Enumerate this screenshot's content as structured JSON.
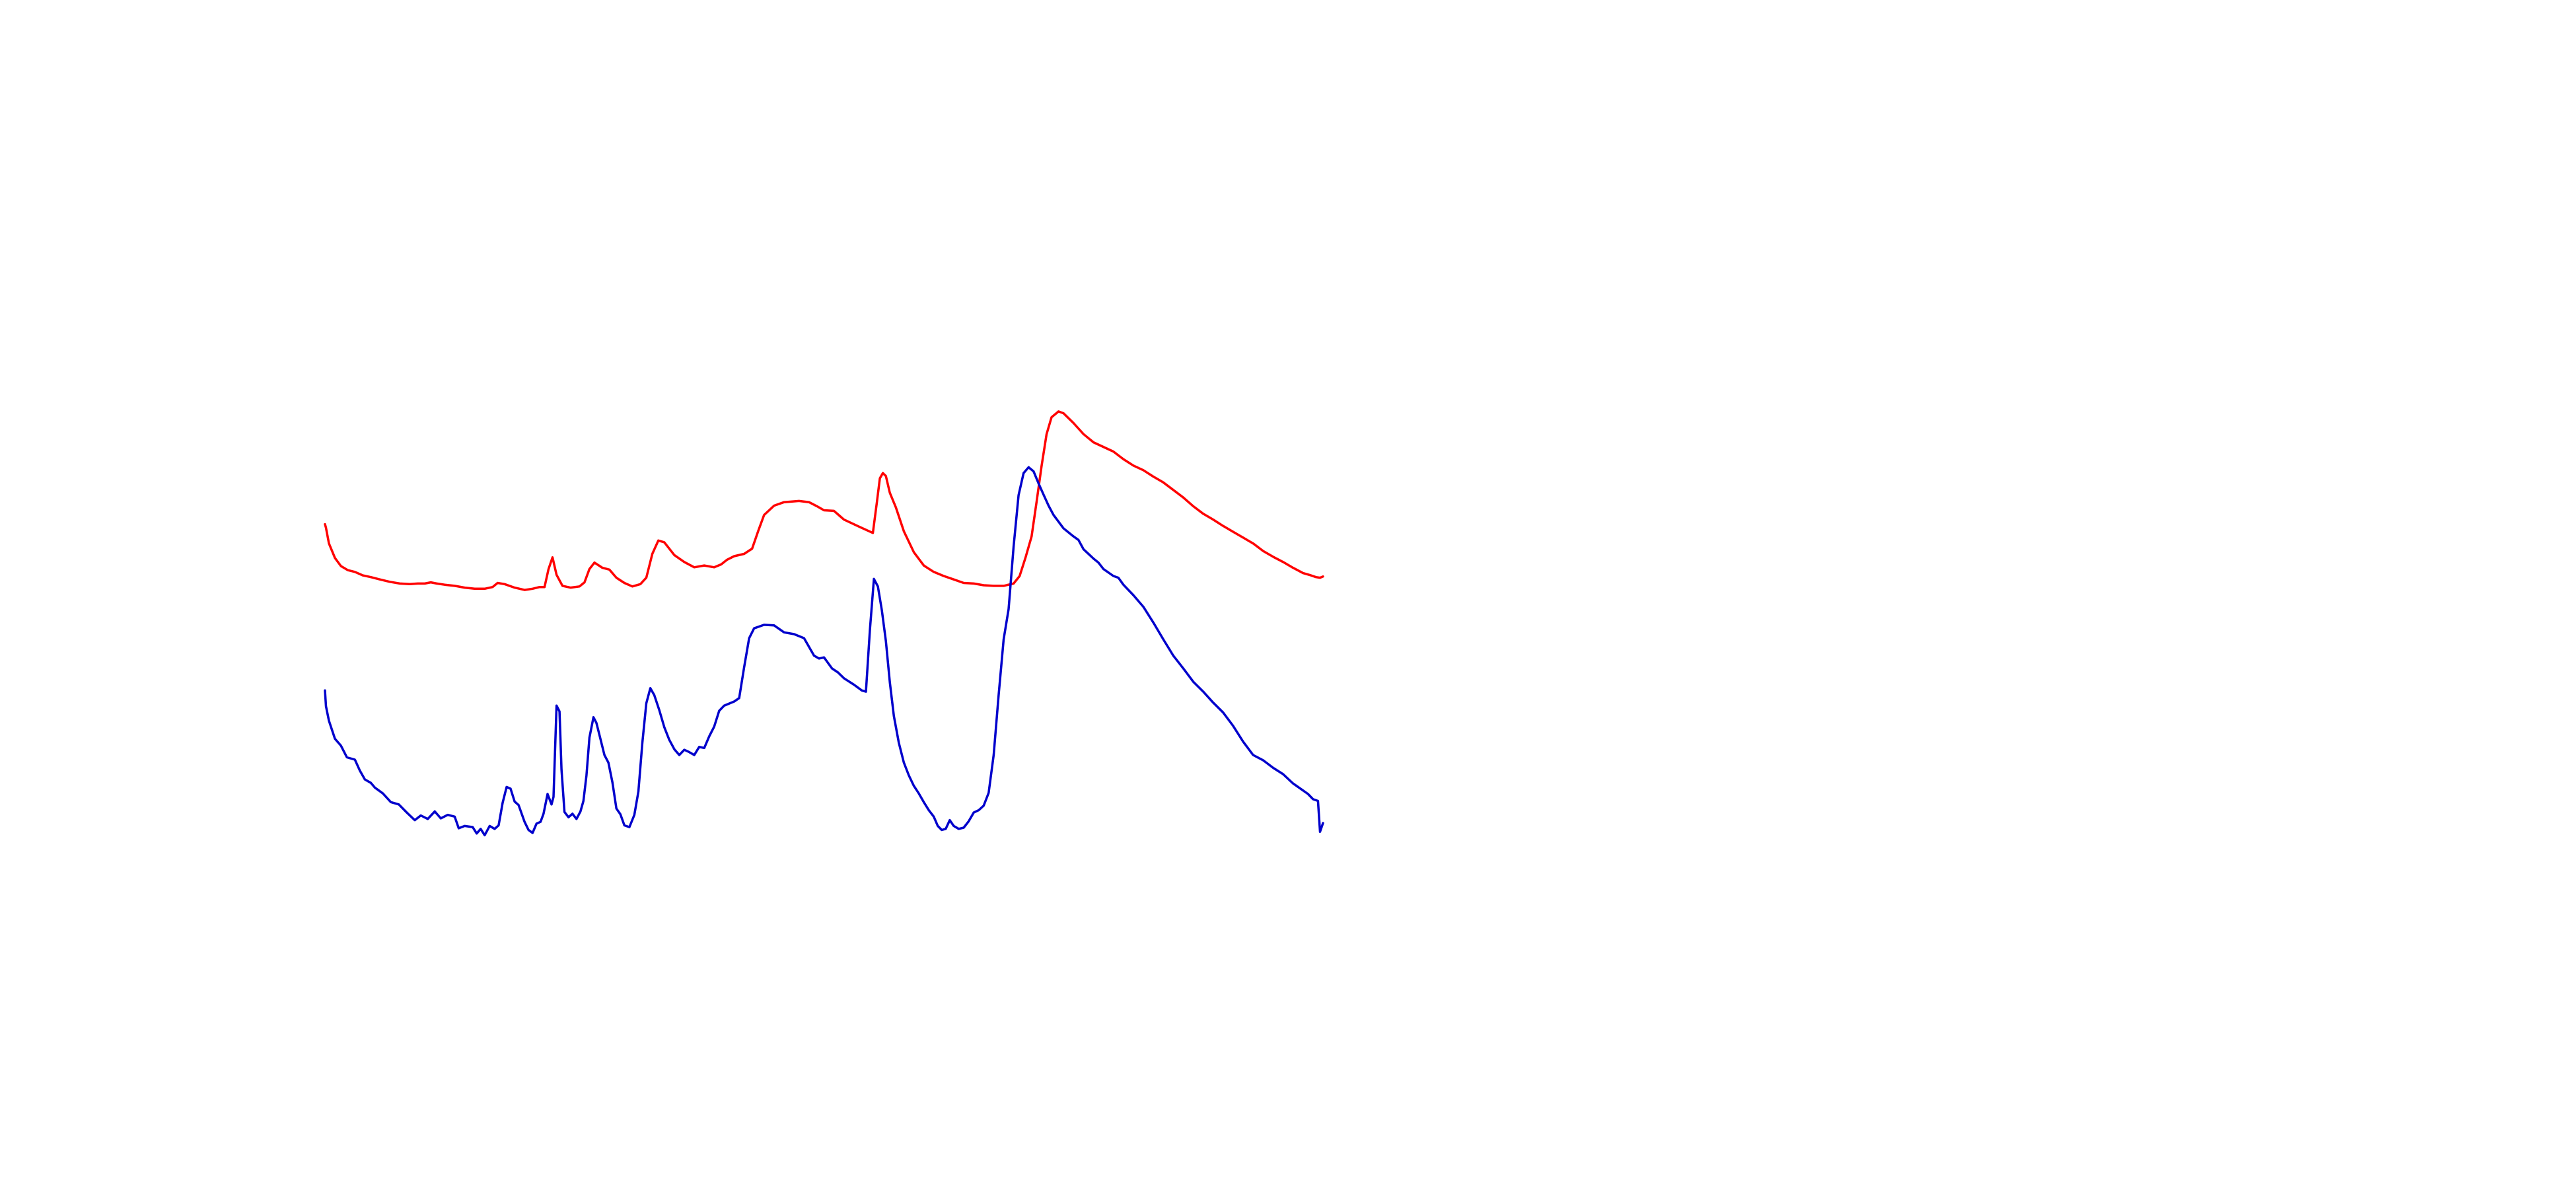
{
  "chart_data": {
    "type": "line",
    "title": "",
    "xlabel": "",
    "ylabel": "",
    "xlim": [
      0,
      100
    ],
    "ylim": [
      0,
      100
    ],
    "grid": false,
    "legend": "none",
    "series": [
      {
        "color": "#ff0000",
        "points": [
          [
            0.0,
            67.2
          ],
          [
            0.1,
            66.6
          ],
          [
            0.4,
            63.9
          ],
          [
            1.0,
            61.4
          ],
          [
            1.6,
            60.0
          ],
          [
            2.3,
            59.3
          ],
          [
            3.0,
            59.0
          ],
          [
            3.8,
            58.4
          ],
          [
            4.6,
            58.1
          ],
          [
            5.5,
            57.7
          ],
          [
            6.5,
            57.3
          ],
          [
            7.5,
            57.0
          ],
          [
            8.5,
            56.9
          ],
          [
            9.3,
            57.0
          ],
          [
            10.0,
            57.0
          ],
          [
            10.6,
            57.2
          ],
          [
            11.2,
            57.0
          ],
          [
            12.0,
            56.8
          ],
          [
            13.0,
            56.6
          ],
          [
            14.0,
            56.3
          ],
          [
            15.0,
            56.1
          ],
          [
            16.0,
            56.1
          ],
          [
            16.8,
            56.4
          ],
          [
            17.3,
            57.1
          ],
          [
            18.0,
            56.9
          ],
          [
            19.0,
            56.3
          ],
          [
            20.0,
            55.9
          ],
          [
            20.8,
            56.1
          ],
          [
            21.5,
            56.4
          ],
          [
            22.0,
            56.4
          ],
          [
            22.4,
            59.5
          ],
          [
            22.8,
            61.5
          ],
          [
            23.2,
            58.5
          ],
          [
            23.8,
            56.6
          ],
          [
            24.6,
            56.3
          ],
          [
            25.5,
            56.5
          ],
          [
            26.0,
            57.2
          ],
          [
            26.5,
            59.5
          ],
          [
            27.0,
            60.6
          ],
          [
            27.8,
            59.7
          ],
          [
            28.5,
            59.4
          ],
          [
            29.2,
            58.0
          ],
          [
            30.0,
            57.1
          ],
          [
            30.8,
            56.5
          ],
          [
            31.6,
            56.9
          ],
          [
            32.2,
            58.0
          ],
          [
            32.8,
            62.1
          ],
          [
            33.4,
            64.4
          ],
          [
            34.0,
            64.1
          ],
          [
            35.0,
            61.9
          ],
          [
            36.0,
            60.7
          ],
          [
            37.0,
            59.8
          ],
          [
            38.0,
            60.1
          ],
          [
            39.0,
            59.8
          ],
          [
            39.7,
            60.3
          ],
          [
            40.3,
            61.1
          ],
          [
            41.0,
            61.7
          ],
          [
            42.0,
            62.1
          ],
          [
            42.8,
            63.0
          ],
          [
            43.4,
            66.0
          ],
          [
            44.0,
            68.8
          ],
          [
            45.0,
            70.4
          ],
          [
            46.0,
            71.0
          ],
          [
            47.5,
            71.2
          ],
          [
            48.5,
            71.0
          ],
          [
            49.3,
            70.3
          ],
          [
            50.0,
            69.6
          ],
          [
            51.0,
            69.5
          ],
          [
            52.0,
            68.0
          ],
          [
            53.5,
            66.8
          ],
          [
            54.9,
            65.7
          ],
          [
            55.3,
            71.0
          ],
          [
            55.6,
            75.1
          ],
          [
            55.9,
            76.0
          ],
          [
            56.2,
            75.5
          ],
          [
            56.6,
            72.6
          ],
          [
            57.2,
            70.1
          ],
          [
            58.0,
            66.0
          ],
          [
            59.0,
            62.4
          ],
          [
            60.0,
            60.1
          ],
          [
            61.0,
            59.0
          ],
          [
            62.0,
            58.3
          ],
          [
            63.0,
            57.7
          ],
          [
            64.0,
            57.1
          ],
          [
            65.0,
            57.0
          ],
          [
            66.0,
            56.7
          ],
          [
            67.0,
            56.6
          ],
          [
            68.0,
            56.6
          ],
          [
            69.0,
            57.0
          ],
          [
            69.6,
            58.3
          ],
          [
            70.2,
            61.5
          ],
          [
            70.8,
            65.1
          ],
          [
            71.3,
            71.0
          ],
          [
            71.8,
            77.2
          ],
          [
            72.3,
            82.7
          ],
          [
            72.8,
            85.6
          ],
          [
            73.5,
            86.6
          ],
          [
            74.0,
            86.3
          ],
          [
            75.0,
            84.6
          ],
          [
            76.0,
            82.7
          ],
          [
            77.0,
            81.3
          ],
          [
            78.0,
            80.5
          ],
          [
            79.0,
            79.7
          ],
          [
            80.0,
            78.4
          ],
          [
            81.0,
            77.3
          ],
          [
            82.0,
            76.5
          ],
          [
            83.0,
            75.4
          ],
          [
            84.0,
            74.4
          ],
          [
            85.0,
            73.1
          ],
          [
            86.0,
            71.8
          ],
          [
            87.0,
            70.3
          ],
          [
            88.0,
            69.0
          ],
          [
            89.0,
            68.0
          ],
          [
            90.0,
            66.9
          ],
          [
            91.0,
            65.9
          ],
          [
            92.0,
            64.9
          ],
          [
            93.0,
            63.9
          ],
          [
            94.0,
            62.6
          ],
          [
            95.0,
            61.6
          ],
          [
            96.0,
            60.7
          ],
          [
            97.0,
            59.7
          ],
          [
            98.0,
            58.8
          ],
          [
            98.8,
            58.4
          ],
          [
            99.3,
            58.1
          ],
          [
            99.7,
            58.0
          ],
          [
            100.0,
            58.2
          ]
        ]
      },
      {
        "color": "#0000cc",
        "points": [
          [
            0.0,
            38.6
          ],
          [
            0.1,
            35.9
          ],
          [
            0.4,
            33.4
          ],
          [
            1.0,
            30.3
          ],
          [
            1.6,
            29.1
          ],
          [
            2.2,
            27.1
          ],
          [
            3.0,
            26.7
          ],
          [
            3.5,
            24.8
          ],
          [
            4.0,
            23.3
          ],
          [
            4.6,
            22.7
          ],
          [
            5.0,
            21.9
          ],
          [
            5.8,
            20.9
          ],
          [
            6.6,
            19.4
          ],
          [
            7.4,
            19.0
          ],
          [
            8.2,
            17.6
          ],
          [
            9.0,
            16.3
          ],
          [
            9.6,
            17.1
          ],
          [
            10.3,
            16.5
          ],
          [
            11.0,
            17.8
          ],
          [
            11.6,
            16.6
          ],
          [
            12.3,
            17.2
          ],
          [
            13.0,
            16.9
          ],
          [
            13.4,
            14.9
          ],
          [
            14.0,
            15.3
          ],
          [
            14.8,
            15.1
          ],
          [
            15.2,
            14.0
          ],
          [
            15.6,
            14.8
          ],
          [
            16.0,
            13.7
          ],
          [
            16.5,
            15.3
          ],
          [
            17.0,
            14.8
          ],
          [
            17.4,
            15.4
          ],
          [
            17.8,
            19.3
          ],
          [
            18.2,
            22.0
          ],
          [
            18.6,
            21.7
          ],
          [
            19.0,
            19.5
          ],
          [
            19.4,
            18.9
          ],
          [
            20.0,
            16.0
          ],
          [
            20.4,
            14.6
          ],
          [
            20.8,
            14.1
          ],
          [
            21.2,
            15.7
          ],
          [
            21.6,
            16.0
          ],
          [
            21.9,
            17.4
          ],
          [
            22.3,
            20.8
          ],
          [
            22.7,
            19.0
          ],
          [
            22.9,
            20.3
          ],
          [
            23.2,
            36.0
          ],
          [
            23.5,
            35.0
          ],
          [
            23.7,
            25.0
          ],
          [
            24.0,
            17.7
          ],
          [
            24.4,
            16.8
          ],
          [
            24.8,
            17.4
          ],
          [
            25.2,
            16.5
          ],
          [
            25.6,
            17.8
          ],
          [
            25.9,
            19.6
          ],
          [
            26.2,
            24.0
          ],
          [
            26.5,
            30.5
          ],
          [
            26.9,
            34.0
          ],
          [
            27.2,
            33.0
          ],
          [
            27.6,
            30.3
          ],
          [
            28.0,
            27.5
          ],
          [
            28.4,
            26.2
          ],
          [
            28.8,
            22.8
          ],
          [
            29.2,
            18.3
          ],
          [
            29.6,
            17.3
          ],
          [
            30.0,
            15.4
          ],
          [
            30.5,
            15.1
          ],
          [
            31.0,
            17.2
          ],
          [
            31.4,
            21.2
          ],
          [
            31.8,
            29.6
          ],
          [
            32.2,
            36.4
          ],
          [
            32.6,
            39.0
          ],
          [
            33.0,
            37.8
          ],
          [
            33.5,
            35.2
          ],
          [
            34.0,
            32.3
          ],
          [
            34.5,
            30.1
          ],
          [
            35.0,
            28.5
          ],
          [
            35.5,
            27.5
          ],
          [
            36.0,
            28.4
          ],
          [
            36.5,
            28.0
          ],
          [
            37.0,
            27.5
          ],
          [
            37.5,
            28.9
          ],
          [
            38.0,
            28.7
          ],
          [
            38.5,
            30.7
          ],
          [
            39.0,
            32.4
          ],
          [
            39.5,
            35.1
          ],
          [
            40.0,
            36.0
          ],
          [
            41.0,
            36.7
          ],
          [
            41.5,
            37.3
          ],
          [
            42.0,
            42.6
          ],
          [
            42.5,
            47.6
          ],
          [
            43.0,
            49.3
          ],
          [
            44.0,
            49.9
          ],
          [
            45.0,
            49.8
          ],
          [
            46.0,
            48.6
          ],
          [
            47.0,
            48.3
          ],
          [
            48.0,
            47.6
          ],
          [
            49.0,
            44.6
          ],
          [
            49.5,
            44.1
          ],
          [
            50.0,
            44.3
          ],
          [
            50.8,
            42.4
          ],
          [
            51.4,
            41.7
          ],
          [
            52.0,
            40.7
          ],
          [
            53.0,
            39.6
          ],
          [
            53.8,
            38.6
          ],
          [
            54.2,
            38.4
          ],
          [
            54.6,
            49.0
          ],
          [
            55.0,
            57.8
          ],
          [
            55.4,
            56.5
          ],
          [
            55.8,
            52.4
          ],
          [
            56.2,
            47.1
          ],
          [
            56.6,
            40.0
          ],
          [
            57.0,
            34.2
          ],
          [
            57.5,
            29.6
          ],
          [
            58.0,
            26.2
          ],
          [
            58.5,
            24.0
          ],
          [
            59.0,
            22.2
          ],
          [
            59.5,
            20.9
          ],
          [
            60.0,
            19.4
          ],
          [
            60.5,
            18.0
          ],
          [
            61.0,
            16.9
          ],
          [
            61.4,
            15.3
          ],
          [
            61.8,
            14.6
          ],
          [
            62.2,
            14.8
          ],
          [
            62.6,
            16.3
          ],
          [
            63.0,
            15.3
          ],
          [
            63.5,
            14.8
          ],
          [
            64.0,
            15.0
          ],
          [
            64.5,
            16.1
          ],
          [
            65.0,
            17.6
          ],
          [
            65.5,
            18.0
          ],
          [
            66.0,
            18.8
          ],
          [
            66.5,
            21.0
          ],
          [
            67.0,
            27.5
          ],
          [
            67.5,
            37.8
          ],
          [
            68.0,
            47.4
          ],
          [
            68.5,
            52.6
          ],
          [
            69.0,
            63.4
          ],
          [
            69.5,
            72.2
          ],
          [
            70.0,
            76.0
          ],
          [
            70.5,
            77.0
          ],
          [
            71.0,
            76.3
          ],
          [
            71.5,
            74.2
          ],
          [
            72.0,
            72.3
          ],
          [
            72.5,
            70.4
          ],
          [
            73.0,
            68.8
          ],
          [
            74.0,
            66.5
          ],
          [
            75.0,
            65.1
          ],
          [
            75.5,
            64.5
          ],
          [
            76.0,
            62.9
          ],
          [
            77.0,
            61.3
          ],
          [
            77.5,
            60.6
          ],
          [
            78.0,
            59.5
          ],
          [
            79.0,
            58.3
          ],
          [
            79.5,
            58.0
          ],
          [
            80.0,
            56.8
          ],
          [
            81.0,
            55.0
          ],
          [
            82.0,
            53.0
          ],
          [
            83.0,
            50.3
          ],
          [
            84.0,
            47.4
          ],
          [
            85.0,
            44.6
          ],
          [
            86.0,
            42.4
          ],
          [
            87.0,
            40.1
          ],
          [
            88.0,
            38.4
          ],
          [
            89.0,
            36.5
          ],
          [
            90.0,
            34.8
          ],
          [
            91.0,
            32.5
          ],
          [
            92.0,
            29.8
          ],
          [
            93.0,
            27.5
          ],
          [
            94.0,
            26.6
          ],
          [
            95.0,
            25.3
          ],
          [
            96.0,
            24.2
          ],
          [
            97.0,
            22.6
          ],
          [
            98.0,
            21.4
          ],
          [
            98.5,
            20.8
          ],
          [
            99.0,
            19.9
          ],
          [
            99.5,
            19.6
          ],
          [
            99.7,
            14.3
          ],
          [
            100.0,
            15.8
          ]
        ]
      }
    ]
  }
}
